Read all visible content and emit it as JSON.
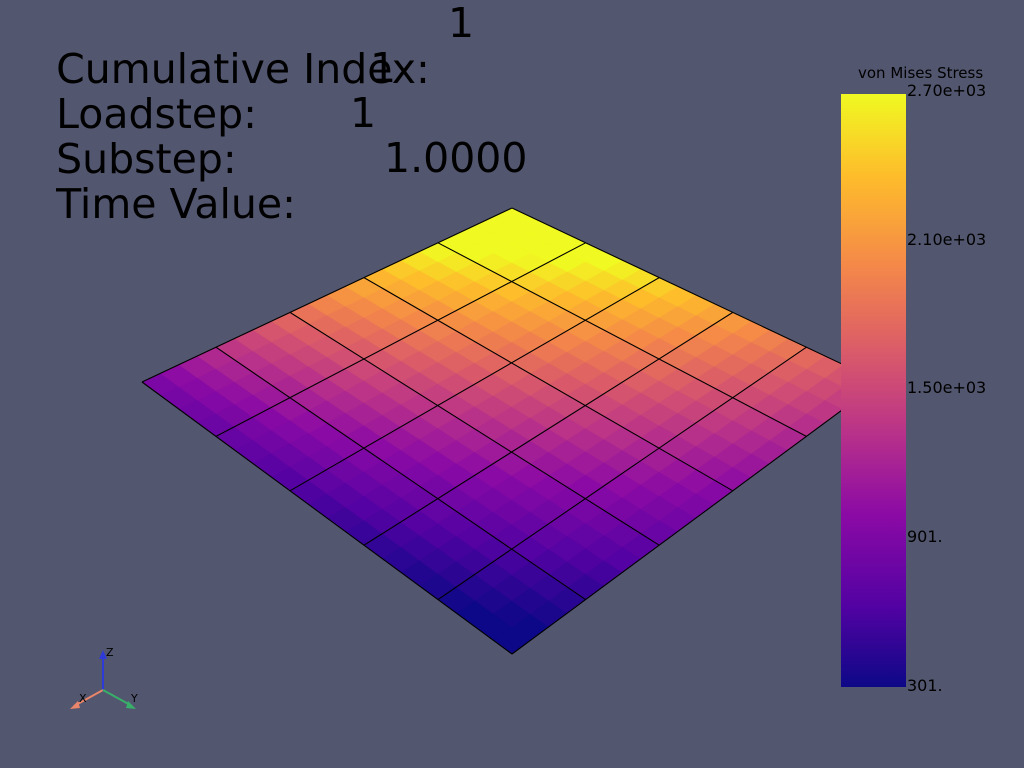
{
  "overlay": {
    "lines": [
      {
        "label": "Cumulative Index:",
        "value": "1"
      },
      {
        "label": "Loadstep:",
        "value": "1"
      },
      {
        "label": "Substep:",
        "value": "1"
      },
      {
        "label": "Time Value:",
        "value": "1.0000"
      }
    ]
  },
  "colorbar": {
    "title": "von Mises Stress",
    "ticks": [
      "2.70e+03",
      "2.10e+03",
      "1.50e+03",
      "901.",
      "301."
    ],
    "colormap": "plasma",
    "range": [
      301,
      2700
    ]
  },
  "axes": {
    "x": "X",
    "y": "Y",
    "z": "Z"
  },
  "colors": {
    "background": "#52566e",
    "mesh_edges": "#000000",
    "axis_x": "#e8856a",
    "axis_y": "#38b06a",
    "axis_z": "#2f3bd8"
  }
}
